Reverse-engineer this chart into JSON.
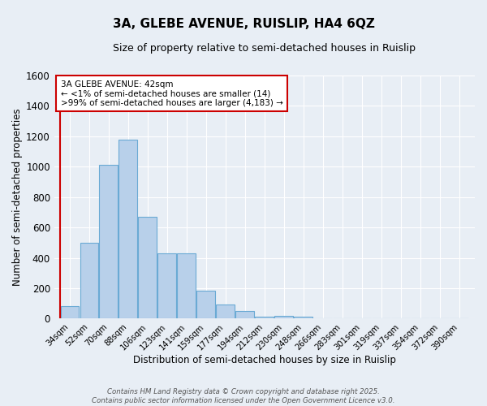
{
  "title": "3A, GLEBE AVENUE, RUISLIP, HA4 6QZ",
  "subtitle": "Size of property relative to semi-detached houses in Ruislip",
  "xlabel": "Distribution of semi-detached houses by size in Ruislip",
  "ylabel": "Number of semi-detached properties",
  "categories": [
    "34sqm",
    "52sqm",
    "70sqm",
    "88sqm",
    "106sqm",
    "123sqm",
    "141sqm",
    "159sqm",
    "177sqm",
    "194sqm",
    "212sqm",
    "230sqm",
    "248sqm",
    "266sqm",
    "283sqm",
    "301sqm",
    "319sqm",
    "337sqm",
    "354sqm",
    "372sqm",
    "390sqm"
  ],
  "values": [
    80,
    500,
    1010,
    1180,
    670,
    430,
    430,
    185,
    95,
    50,
    15,
    20,
    10,
    0,
    0,
    0,
    0,
    0,
    0,
    0,
    0
  ],
  "bar_color": "#b8d0ea",
  "bar_edge_color": "#6aaad4",
  "background_color": "#e8eef5",
  "grid_color": "#ffffff",
  "vline_color": "#cc0000",
  "annotation_text": "3A GLEBE AVENUE: 42sqm\n← <1% of semi-detached houses are smaller (14)\n>99% of semi-detached houses are larger (4,183) →",
  "annotation_box_color": "#ffffff",
  "annotation_box_edge": "#cc0000",
  "ylim": [
    0,
    1600
  ],
  "yticks": [
    0,
    200,
    400,
    600,
    800,
    1000,
    1200,
    1400,
    1600
  ],
  "footer": "Contains HM Land Registry data © Crown copyright and database right 2025.\nContains public sector information licensed under the Open Government Licence v3.0.",
  "bin_width": 18
}
